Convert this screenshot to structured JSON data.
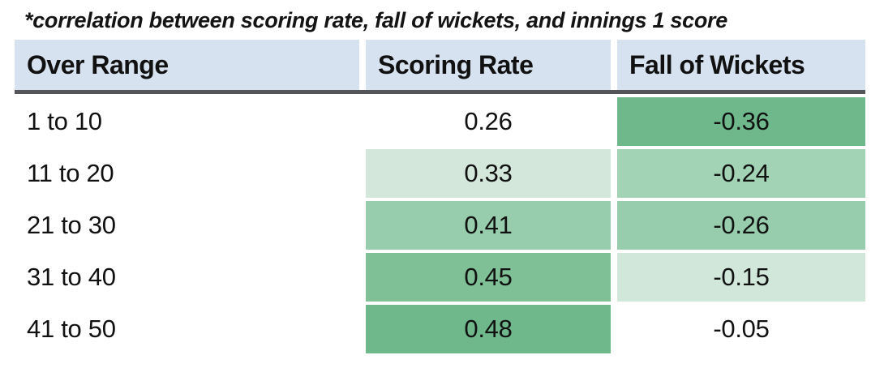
{
  "caption": "*correlation between scoring rate, fall of wickets, and innings 1 score",
  "table": {
    "headers": [
      "Over Range",
      "Scoring Rate",
      "Fall of Wickets"
    ],
    "header_bg": "#d7e2f0",
    "divider_color": "#54565a",
    "rows": [
      {
        "over": "1 to 10",
        "scoring": {
          "value": "0.26",
          "bg": "#ffffff"
        },
        "wickets": {
          "value": "-0.36",
          "bg": "#6eb88c"
        }
      },
      {
        "over": "11 to 20",
        "scoring": {
          "value": "0.33",
          "bg": "#d3e8db"
        },
        "wickets": {
          "value": "-0.24",
          "bg": "#a2d3b4"
        }
      },
      {
        "over": "21 to 30",
        "scoring": {
          "value": "0.41",
          "bg": "#97cdac"
        },
        "wickets": {
          "value": "-0.26",
          "bg": "#97cdac"
        }
      },
      {
        "over": "31 to 40",
        "scoring": {
          "value": "0.45",
          "bg": "#7fc096"
        },
        "wickets": {
          "value": "-0.15",
          "bg": "#d0e7d9"
        }
      },
      {
        "over": "41 to 50",
        "scoring": {
          "value": "0.48",
          "bg": "#6eb88c"
        },
        "wickets": {
          "value": "-0.05",
          "bg": "#ffffff"
        }
      }
    ]
  },
  "chart_data": {
    "type": "heatmap",
    "title": "*correlation between scoring rate, fall of wickets, and innings 1 score",
    "categories": [
      "1 to 10",
      "11 to 20",
      "21 to 30",
      "31 to 40",
      "41 to 50"
    ],
    "series": [
      {
        "name": "Scoring Rate",
        "values": [
          0.26,
          0.33,
          0.41,
          0.45,
          0.48
        ]
      },
      {
        "name": "Fall of Wickets",
        "values": [
          -0.36,
          -0.24,
          -0.26,
          -0.15,
          -0.05
        ]
      }
    ],
    "value_range": [
      -1,
      1
    ],
    "color_scale": "white to green by correlation magnitude",
    "legend_position": "none",
    "grid": false
  }
}
